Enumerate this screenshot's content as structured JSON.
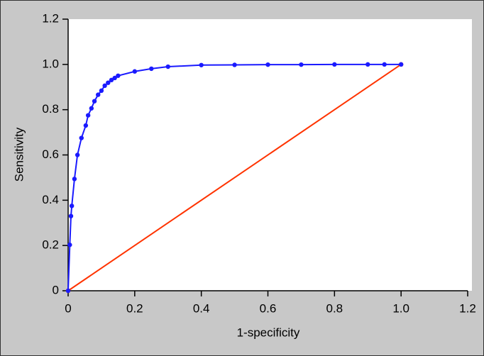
{
  "chart_data": {
    "type": "line",
    "xlabel": "1-specificity",
    "ylabel": "Sensitivity",
    "xlim": [
      0,
      1.2
    ],
    "ylim": [
      0,
      1.2
    ],
    "xticks": [
      0,
      0.2,
      0.4,
      0.6,
      0.8,
      {
        "value": 1,
        "label": "1.0"
      },
      1.2
    ],
    "yticks": [
      0,
      0.2,
      0.4,
      0.6,
      0.8,
      {
        "value": 1,
        "label": "1.0"
      },
      1.2
    ],
    "series": [
      {
        "color": "#1a1aff",
        "x": [
          0,
          0.005,
          0.0085,
          0.011,
          0.019,
          0.028,
          0.04,
          0.053,
          0.06,
          0.07,
          0.079,
          0.09,
          0.1,
          0.11,
          0.12,
          0.13,
          0.14,
          0.15,
          0.2,
          0.25,
          0.3,
          0.4,
          0.5,
          0.6,
          0.7,
          0.8,
          0.9,
          0.95,
          1.0
        ],
        "values": [
          0,
          0.203,
          0.33,
          0.375,
          0.494,
          0.6,
          0.675,
          0.73,
          0.775,
          0.806,
          0.8375,
          0.866,
          0.884,
          0.906,
          0.919,
          0.931,
          0.94,
          0.95,
          0.969,
          0.981,
          0.99,
          0.997,
          0.998,
          0.999,
          0.999,
          1.0,
          1.0,
          1.0,
          1.0
        ]
      },
      {
        "color": "#ff3300",
        "x": [
          0,
          1
        ],
        "values": [
          0,
          1
        ]
      }
    ]
  }
}
